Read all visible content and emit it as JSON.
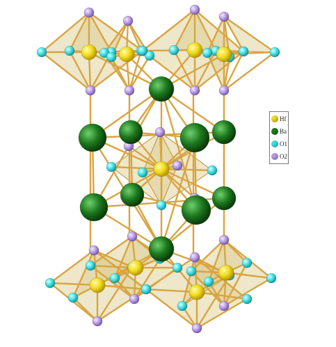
{
  "legend": {
    "items": [
      {
        "label": "Hf",
        "color": "#f2dc1a"
      },
      {
        "label": "Ba",
        "color": "#1e7a1e"
      },
      {
        "label": "O1",
        "color": "#3fe0e6"
      },
      {
        "label": "O2",
        "color": "#b89be6"
      }
    ]
  },
  "colors": {
    "bond": "#d9a441",
    "polyhedron": "#d9c98a",
    "edge": "#c08a2a"
  }
}
